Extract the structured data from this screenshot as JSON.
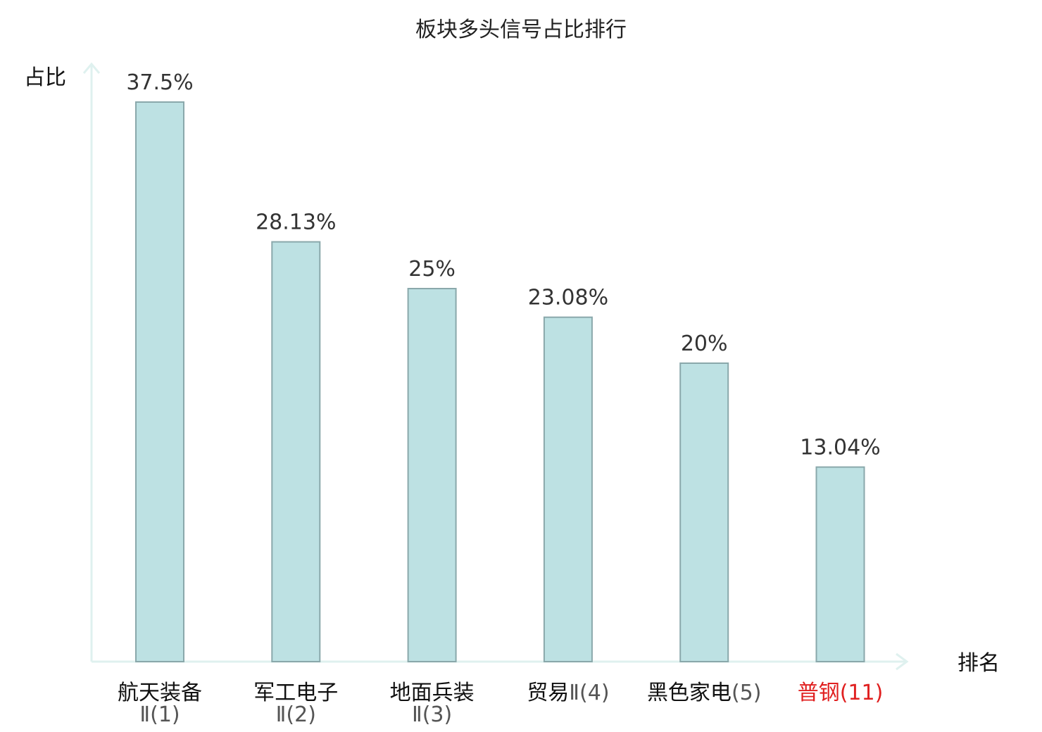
{
  "chart_data": {
    "type": "bar",
    "title": "板块多头信号占比排行",
    "ylabel": "占比",
    "xlabel": "排名",
    "categories": [
      {
        "name": "航天装备",
        "rank": "Ⅱ(1)",
        "inline": false,
        "highlight": false
      },
      {
        "name": "军工电子",
        "rank": "Ⅱ(2)",
        "inline": false,
        "highlight": false
      },
      {
        "name": "地面兵装",
        "rank": "Ⅱ(3)",
        "inline": false,
        "highlight": false
      },
      {
        "name": "贸易",
        "rank": "Ⅱ(4)",
        "inline": true,
        "highlight": false
      },
      {
        "name": "黑色家电",
        "rank": "(5)",
        "inline": true,
        "highlight": false
      },
      {
        "name": "普钢",
        "rank": "(11)",
        "inline": true,
        "highlight": true
      }
    ],
    "values": [
      37.5,
      28.13,
      25,
      23.08,
      20,
      13.04
    ],
    "value_labels": [
      "37.5%",
      "28.13%",
      "25%",
      "23.08%",
      "20%",
      "13.04%"
    ],
    "ylim": [
      0,
      37.5
    ],
    "grid": false,
    "colors": {
      "bar_fill": "#bde1e3",
      "bar_stroke": "#8aa8ab",
      "axis": "#dff1ef",
      "highlight": "#e02020",
      "name_text": "#111111",
      "rank_text": "#555555",
      "value_text": "#333333"
    }
  }
}
